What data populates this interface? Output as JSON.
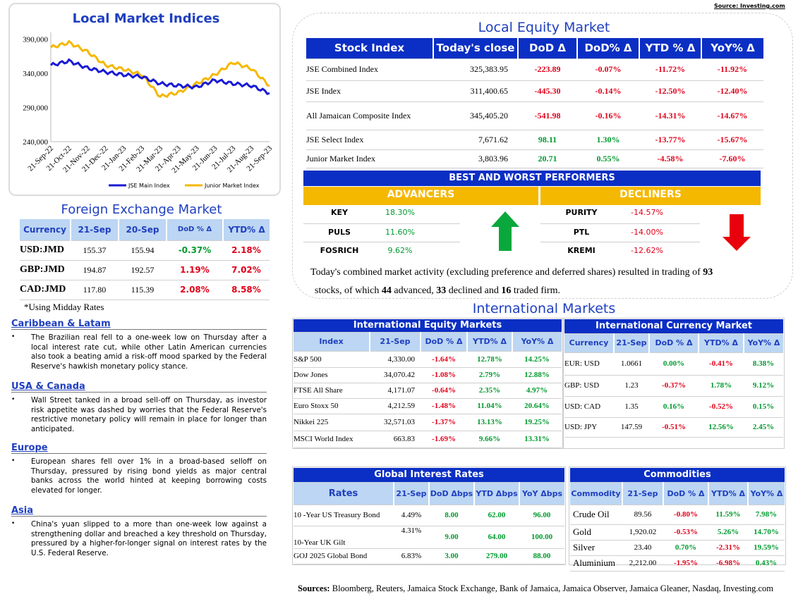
{
  "source_top": "Source: Investing.com",
  "lmi": {
    "title": "Local Market Indices",
    "y_ticks": [
      "390,000",
      "340,000",
      "290,000",
      "240,000"
    ],
    "x_ticks": [
      "21-Sep-22",
      "21-Oct-22",
      "21-Nov-22",
      "21-Dec-22",
      "21-Jan-23",
      "21-Feb-23",
      "21-Mar-23",
      "21-Apr-23",
      "21-May-23",
      "21-Jun-23",
      "21-Jul-23",
      "21-Aug-23",
      "21-Sep-23"
    ],
    "legend_main": "JSE Main Index",
    "legend_junior": "Junior Market Index",
    "colors": {
      "main": "#1a1ad6",
      "junior": "#f5b800"
    }
  },
  "chart_data": {
    "type": "line",
    "ylim": [
      240000,
      400000
    ],
    "x": [
      "21-Sep-22",
      "21-Oct-22",
      "21-Nov-22",
      "21-Dec-22",
      "21-Jan-23",
      "21-Feb-23",
      "21-Mar-23",
      "21-Apr-23",
      "21-May-23",
      "21-Jun-23",
      "21-Jul-23",
      "21-Aug-23",
      "21-Sep-23"
    ],
    "series": [
      {
        "name": "JSE Main Index",
        "values": [
          352000,
          358000,
          348000,
          342000,
          338000,
          335000,
          325000,
          322000,
          320000,
          330000,
          325000,
          322000,
          311000
        ]
      },
      {
        "name": "Junior Market Index",
        "values": [
          378000,
          385000,
          372000,
          352000,
          346000,
          338000,
          306000,
          312000,
          325000,
          338000,
          356000,
          347000,
          322000
        ]
      }
    ]
  },
  "fx": {
    "title": "Foreign Exchange Market",
    "headers": [
      "Currency",
      "21-Sep",
      "20-Sep",
      "DoD % Δ",
      "YTD% Δ"
    ],
    "rows": [
      {
        "cur": "USD:JMD",
        "a": "155.37",
        "b": "155.94",
        "dod": "-0.37%",
        "ytd": "2.18%"
      },
      {
        "cur": "GBP:JMD",
        "a": "194.87",
        "b": "192.57",
        "dod": "1.19%",
        "ytd": "7.02%"
      },
      {
        "cur": "CAD:JMD",
        "a": "117.80",
        "b": "115.39",
        "dod": "2.08%",
        "ytd": "8.58%"
      }
    ],
    "note": "*Using Midday Rates"
  },
  "news": [
    {
      "title": "Caribbean & Latam",
      "text": "The Brazilian real fell to a one-week low on Thursday after a local interest rate cut, while other Latin American currencies also took a beating amid a risk-off mood sparked by the Federal Reserve's hawkish monetary policy stance."
    },
    {
      "title": "USA & Canada",
      "text": "Wall Street tanked in a broad sell-off on Thursday, as investor risk appetite was dashed by worries that the Federal Reserve's restrictive monetary policy will remain in place for longer than anticipated."
    },
    {
      "title": "Europe",
      "text": "European shares fell over 1% in a broad-based selloff on Thursday, pressured by rising bond yields as major central banks across the world hinted at keeping borrowing costs elevated for longer."
    },
    {
      "title": "Asia",
      "text": "China's yuan slipped to a more than one-week low against a strengthening dollar and breached a key threshold on Thursday, pressured by a higher-for-longer signal on interest rates by the U.S. Federal Reserve."
    }
  ],
  "lem": {
    "title": "Local Equity Market",
    "headers": [
      "Stock Index",
      "Today's close",
      "DoD  Δ",
      "DoD% Δ",
      "YTD % Δ",
      "YoY% Δ"
    ],
    "rows": [
      {
        "name": "JSE Combined Index",
        "close": "325,383.95",
        "dod": "-223.89",
        "dodp": "-0.07%",
        "ytd": "-11.72%",
        "yoy": "-11.92%"
      },
      {
        "name": "JSE Index",
        "close": "311,400.65",
        "dod": "-445.30",
        "dodp": "-0.14%",
        "ytd": "-12.50%",
        "yoy": "-12.40%"
      },
      {
        "name": "All Jamaican Composite Index",
        "close": "345,405.20",
        "dod": "-541.98",
        "dodp": "-0.16%",
        "ytd": "-14.31%",
        "yoy": "-14.67%"
      },
      {
        "name": "JSE Select Index",
        "close": "7,671.62",
        "dod": "98.11",
        "dodp": "1.30%",
        "ytd": "-13.77%",
        "yoy": "-15.67%"
      },
      {
        "name": "Junior Market Index",
        "close": "3,803.96",
        "dod": "20.71",
        "dodp": "0.55%",
        "ytd": "-4.58%",
        "yoy": "-7.60%"
      }
    ]
  },
  "bwp": {
    "title": "BEST AND WORST PERFORMERS",
    "adv_title": "ADVANCERS",
    "dec_title": "DECLINERS",
    "advancers": [
      {
        "t": "KEY",
        "v": "18.30%"
      },
      {
        "t": "PULS",
        "v": "11.60%"
      },
      {
        "t": "FOSRICH",
        "v": "9.62%"
      }
    ],
    "decliners": [
      {
        "t": "PURITY",
        "v": "-14.57%"
      },
      {
        "t": "PTL",
        "v": "-14.00%"
      },
      {
        "t": "KREMI",
        "v": "-12.62%"
      }
    ]
  },
  "activity": {
    "p1": "Today's combined market activity (excluding preference and deferred shares) resulted in trading of ",
    "n_total": "93",
    "p2": "stocks, of which ",
    "n_adv": "44",
    "p3": " advanced, ",
    "n_dec": "33",
    "p4": " declined and ",
    "n_firm": "16",
    "p5": " traded firm."
  },
  "intl_title": "International Markets",
  "iem": {
    "title": "International Equity Markets",
    "headers": [
      "Index",
      "21-Sep",
      "DoD % Δ",
      "YTD% Δ",
      "YoY% Δ"
    ],
    "rows": [
      {
        "name": "S&P 500",
        "v": "4,330.00",
        "dod": "-1.64%",
        "ytd": "12.78%",
        "yoy": "14.25%"
      },
      {
        "name": "Dow Jones",
        "v": "34,070.42",
        "dod": "-1.08%",
        "ytd": "2.79%",
        "yoy": "12.88%"
      },
      {
        "name": "FTSE All Share",
        "v": "4,171.07",
        "dod": "-0.64%",
        "ytd": "2.35%",
        "yoy": "4.97%"
      },
      {
        "name": "Euro Stoxx 50",
        "v": "4,212.59",
        "dod": "-1.48%",
        "ytd": "11.04%",
        "yoy": "20.64%"
      },
      {
        "name": "Nikkei 225",
        "v": "32,571.03",
        "dod": "-1.37%",
        "ytd": "13.13%",
        "yoy": "19.25%"
      },
      {
        "name": "MSCI World Index",
        "v": "663.83",
        "dod": "-1.69%",
        "ytd": "9.66%",
        "yoy": "13.31%"
      }
    ]
  },
  "icm": {
    "title": "International Currency Market",
    "headers": [
      "Currency",
      "21-Sep",
      "DoD % Δ",
      "YTD% Δ",
      "YoY% Δ"
    ],
    "rows": [
      {
        "name": "EUR: USD",
        "v": "1.0661",
        "dod": "0.00%",
        "ytd": "-0.41%",
        "yoy": "8.38%"
      },
      {
        "name": "GBP: USD",
        "v": "1.23",
        "dod": "-0.37%",
        "ytd": "1.78%",
        "yoy": "9.12%"
      },
      {
        "name": "USD: CAD",
        "v": "1.35",
        "dod": "0.16%",
        "ytd": "-0.52%",
        "yoy": "0.15%"
      },
      {
        "name": "USD: JPY",
        "v": "147.59",
        "dod": "-0.51%",
        "ytd": "12.56%",
        "yoy": "2.45%"
      }
    ]
  },
  "gir": {
    "title": "Global Interest Rates",
    "headers": [
      "Rates",
      "21-Sep",
      "DoD Δbps",
      "YTD Δbps",
      "YoY Δbps"
    ],
    "rows": [
      {
        "name": "10 -Year US Treasury Bond",
        "v": "4.49%",
        "dod": "8.00",
        "ytd": "62.00",
        "yoy": "96.00"
      },
      {
        "name": "10-Year UK Gilt",
        "v": "4.31%",
        "dod": "9.00",
        "ytd": "64.00",
        "yoy": "100.00"
      },
      {
        "name": "GOJ 2025 Global Bond",
        "v": "6.83%",
        "dod": "3.00",
        "ytd": "279.00",
        "yoy": "88.00"
      }
    ]
  },
  "com": {
    "title": "Commodities",
    "headers": [
      "Commodity",
      "21-Sep",
      "DoD % Δ",
      "YTD% Δ",
      "YoY% Δ"
    ],
    "rows": [
      {
        "name": "Crude Oil",
        "v": "89.56",
        "dod": "-0.80%",
        "ytd": "11.59%",
        "yoy": "7.98%"
      },
      {
        "name": "Gold",
        "v": "1,920.02",
        "dod": "-0.53%",
        "ytd": "5.26%",
        "yoy": "14.70%"
      },
      {
        "name": "Silver",
        "v": "23.40",
        "dod": "0.70%",
        "ytd": "-2.31%",
        "yoy": "19.59%"
      },
      {
        "name": "Aluminium",
        "v": "2,212.00",
        "dod": "-1.95%",
        "ytd": "-6.98%",
        "yoy": "0.43%"
      }
    ]
  },
  "sources": {
    "label": "Sources:",
    "text": " Bloomberg, Reuters, Jamaica Stock Exchange, Bank of Jamaica, Jamaica Observer, Jamaica Gleaner, Nasdaq, Investing.com"
  }
}
